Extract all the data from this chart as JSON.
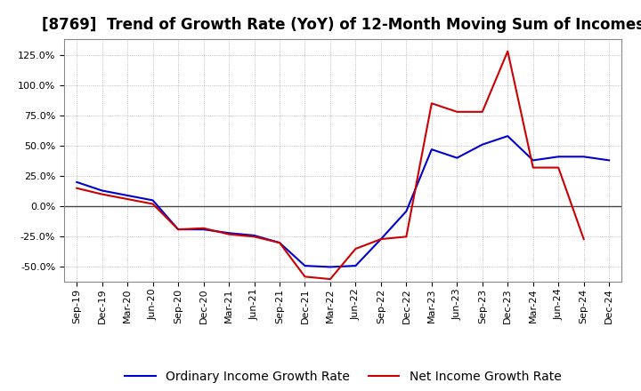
{
  "title": "[8769]  Trend of Growth Rate (YoY) of 12-Month Moving Sum of Incomes",
  "x_labels": [
    "Sep-19",
    "Dec-19",
    "Mar-20",
    "Jun-20",
    "Sep-20",
    "Dec-20",
    "Mar-21",
    "Jun-21",
    "Sep-21",
    "Dec-21",
    "Mar-22",
    "Jun-22",
    "Sep-22",
    "Dec-22",
    "Mar-23",
    "Jun-23",
    "Sep-23",
    "Dec-23",
    "Mar-24",
    "Jun-24",
    "Sep-24",
    "Dec-24"
  ],
  "ordinary_income": [
    0.2,
    0.13,
    0.09,
    0.05,
    -0.19,
    -0.19,
    -0.22,
    -0.24,
    -0.3,
    -0.49,
    -0.5,
    -0.49,
    -0.27,
    -0.04,
    0.47,
    0.4,
    0.51,
    0.58,
    0.38,
    0.41,
    0.41,
    0.38
  ],
  "net_income": [
    0.15,
    0.1,
    0.06,
    0.02,
    -0.19,
    -0.18,
    -0.23,
    -0.25,
    -0.3,
    -0.58,
    -0.6,
    -0.35,
    -0.27,
    -0.25,
    0.85,
    0.78,
    0.78,
    1.28,
    0.32,
    0.32,
    -0.27,
    null
  ],
  "ordinary_color": "#0000cc",
  "net_color": "#cc0000",
  "background_color": "#ffffff",
  "plot_bg_color": "#ffffff",
  "grid_color": "#999999",
  "ylim": [
    -0.62,
    1.38
  ],
  "yticks": [
    -0.5,
    -0.25,
    0.0,
    0.25,
    0.5,
    0.75,
    1.0,
    1.25
  ],
  "legend_labels": [
    "Ordinary Income Growth Rate",
    "Net Income Growth Rate"
  ],
  "title_fontsize": 12,
  "axis_fontsize": 8,
  "legend_fontsize": 10
}
